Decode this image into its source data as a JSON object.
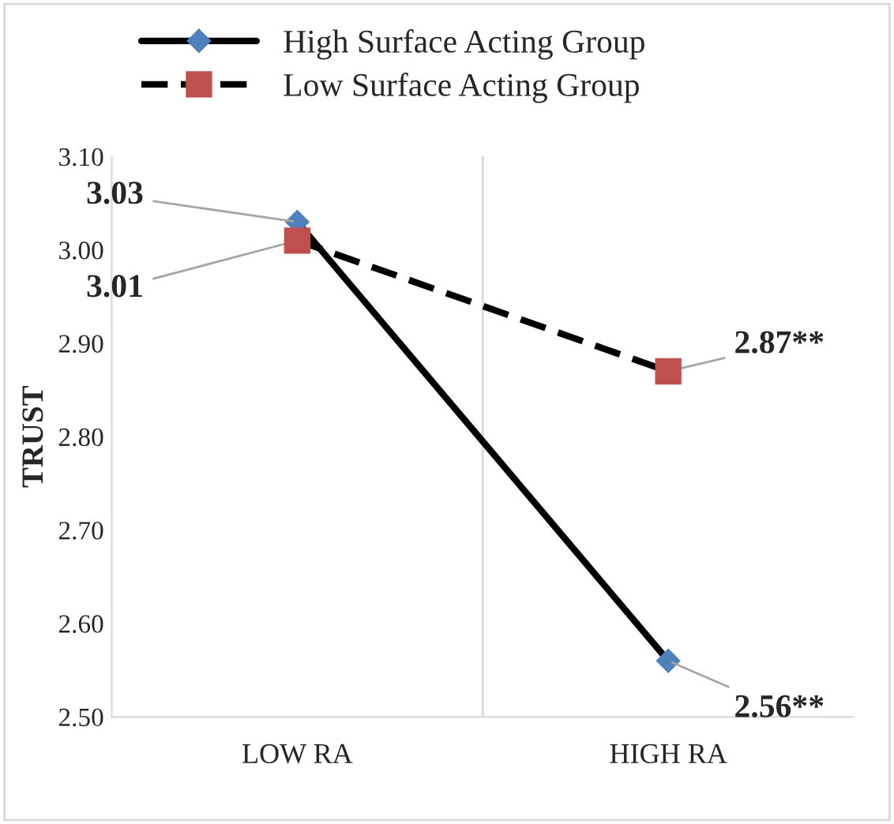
{
  "chart_data": {
    "type": "line",
    "ylabel": "TRUST",
    "categories": [
      "LOW RA",
      "HIGH RA"
    ],
    "series": [
      {
        "name": "High Surface Acting Group",
        "color": "#4f81bd",
        "values": [
          3.03,
          2.56
        ],
        "value_labels": [
          "3.03",
          "2.56**"
        ],
        "marker": "diamond",
        "line_style": "solid"
      },
      {
        "name": "Low Surface Acting Group",
        "color": "#c0504d",
        "values": [
          3.01,
          2.87
        ],
        "value_labels": [
          "3.01",
          "2.87**"
        ],
        "marker": "square",
        "line_style": "dashed"
      }
    ],
    "ylim": [
      2.5,
      3.1
    ],
    "yticks": [
      {
        "value": 2.5,
        "label": "2.50"
      },
      {
        "value": 2.6,
        "label": "2.60"
      },
      {
        "value": 2.7,
        "label": "2.70"
      },
      {
        "value": 2.8,
        "label": "2.80"
      },
      {
        "value": 2.9,
        "label": "2.90"
      },
      {
        "value": 3.0,
        "label": "3.00"
      },
      {
        "value": 3.1,
        "label": "3.10"
      }
    ],
    "grid": "x",
    "legend": "top"
  }
}
